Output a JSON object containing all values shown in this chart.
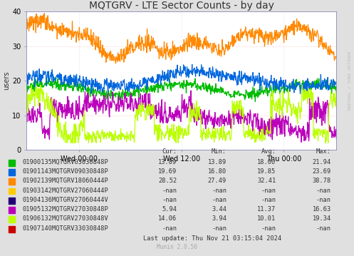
{
  "title": "MQTGRV - LTE Sector Counts - by day",
  "ylabel": "users",
  "background_color": "#e0e0e0",
  "plot_bg_color": "#ffffff",
  "grid_color": "#ffb0b0",
  "ylim": [
    0,
    40
  ],
  "yticks": [
    0,
    10,
    20,
    30,
    40
  ],
  "xtick_labels": [
    "Wed 00:00",
    "Wed 12:00",
    "Thu 00:00"
  ],
  "xtick_positions": [
    0.0,
    0.5,
    1.0
  ],
  "watermark": "RRDTOOL / TOBI OETIKER",
  "munin_label": "Munin 2.0.56",
  "last_update": "Last update: Thu Nov 21 03:15:04 2024",
  "series": [
    {
      "label": "01900135MQTGRV03030848P",
      "color": "#00bb00",
      "cur": "13.89",
      "min": "13.89",
      "avg": "18.00",
      "max": "21.94"
    },
    {
      "label": "01901143MQTGRV09030848P",
      "color": "#0066dd",
      "cur": "19.69",
      "min": "16.80",
      "avg": "19.85",
      "max": "23.69"
    },
    {
      "label": "01902139MQTGRV18060444P",
      "color": "#ff8800",
      "cur": "28.52",
      "min": "27.49",
      "avg": "32.41",
      "max": "38.78"
    },
    {
      "label": "01903142MQTGRV27060444P",
      "color": "#ffcc00",
      "cur": "-nan",
      "min": "-nan",
      "avg": "-nan",
      "max": "-nan"
    },
    {
      "label": "01904136MQTGRV27060444V",
      "color": "#220077",
      "cur": "-nan",
      "min": "-nan",
      "avg": "-nan",
      "max": "-nan"
    },
    {
      "label": "01905132MQTGRV27030848P",
      "color": "#bb00bb",
      "cur": "5.94",
      "min": "3.44",
      "avg": "11.37",
      "max": "16.63"
    },
    {
      "label": "01906132MQTGRV27030848V",
      "color": "#bbff00",
      "cur": "14.06",
      "min": "3.94",
      "avg": "10.01",
      "max": "19.34"
    },
    {
      "label": "01907140MQTGRV33030848P",
      "color": "#cc0000",
      "cur": "-nan",
      "min": "-nan",
      "avg": "-nan",
      "max": "-nan"
    }
  ],
  "legend_table_header": [
    "Cur:",
    "Min:",
    "Avg:",
    "Max:"
  ],
  "title_fontsize": 10,
  "axis_fontsize": 7,
  "legend_fontsize": 6.2
}
